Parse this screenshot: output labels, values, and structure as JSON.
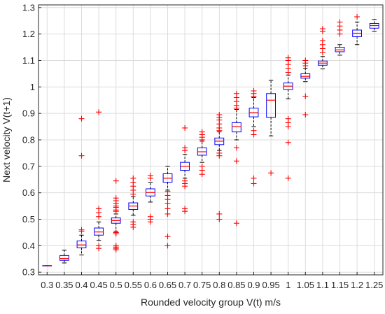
{
  "chart_data": {
    "type": "box",
    "title": "",
    "xlabel": "Rounded velocity group V(t) m/s",
    "ylabel": "Next velocity V(t+1)",
    "ylim": [
      0.29,
      1.31
    ],
    "yticks": [
      0.3,
      0.4,
      0.5,
      0.6,
      0.7,
      0.8,
      0.9,
      1,
      1.1,
      1.2,
      1.3
    ],
    "ytick_labels": [
      "0.3",
      "0.4",
      "0.5",
      "0.6",
      "0.7",
      "0.8",
      "0.9",
      "1",
      "1.1",
      "1.2",
      "1.3"
    ],
    "categories": [
      "0.3",
      "0.35",
      "0.4",
      "0.45",
      "0.5",
      "0.55",
      "0.6",
      "0.65",
      "0.7",
      "0.75",
      "0.8",
      "0.85",
      "0.9",
      "0.95",
      "1",
      "1.05",
      "1.1",
      "1.15",
      "1.2",
      "1.25"
    ],
    "grid": true,
    "colors": {
      "box": "#0000ff",
      "median": "#ff0000",
      "whisker": "#000000",
      "outlier": "#ff0000",
      "grid": "#dcdcdc"
    },
    "boxes": [
      {
        "category": "0.3",
        "lower_whisker": 0.325,
        "q1": 0.325,
        "median": 0.325,
        "q3": 0.325,
        "upper_whisker": 0.325,
        "outliers": []
      },
      {
        "category": "0.35",
        "lower_whisker": 0.335,
        "q1": 0.345,
        "median": 0.352,
        "q3": 0.363,
        "upper_whisker": 0.383,
        "outliers": []
      },
      {
        "category": "0.4",
        "lower_whisker": 0.365,
        "q1": 0.392,
        "median": 0.403,
        "q3": 0.418,
        "upper_whisker": 0.44,
        "outliers": [
          0.455,
          0.46,
          0.74,
          0.88
        ]
      },
      {
        "category": "0.45",
        "lower_whisker": 0.42,
        "q1": 0.44,
        "median": 0.452,
        "q3": 0.467,
        "upper_whisker": 0.49,
        "outliers": [
          0.39,
          0.4,
          0.51,
          0.525,
          0.54,
          0.905
        ]
      },
      {
        "category": "0.5",
        "lower_whisker": 0.455,
        "q1": 0.485,
        "median": 0.495,
        "q3": 0.505,
        "upper_whisker": 0.52,
        "outliers": [
          0.385,
          0.39,
          0.395,
          0.4,
          0.445,
          0.45,
          0.53,
          0.535,
          0.545,
          0.55,
          0.56,
          0.57,
          0.58,
          0.645
        ]
      },
      {
        "category": "0.55",
        "lower_whisker": 0.515,
        "q1": 0.537,
        "median": 0.55,
        "q3": 0.562,
        "upper_whisker": 0.585,
        "outliers": [
          0.47,
          0.48,
          0.49,
          0.595,
          0.61,
          0.625,
          0.64,
          0.655
        ]
      },
      {
        "category": "0.6",
        "lower_whisker": 0.565,
        "q1": 0.588,
        "median": 0.601,
        "q3": 0.615,
        "upper_whisker": 0.64,
        "outliers": [
          0.49,
          0.5,
          0.51,
          0.655,
          0.665
        ]
      },
      {
        "category": "0.65",
        "lower_whisker": 0.61,
        "q1": 0.64,
        "median": 0.655,
        "q3": 0.672,
        "upper_whisker": 0.7,
        "outliers": [
          0.4,
          0.435,
          0.52,
          0.54,
          0.56,
          0.575,
          0.59,
          0.605
        ]
      },
      {
        "category": "0.7",
        "lower_whisker": 0.655,
        "q1": 0.685,
        "median": 0.7,
        "q3": 0.715,
        "upper_whisker": 0.745,
        "outliers": [
          0.53,
          0.54,
          0.625,
          0.635,
          0.645,
          0.76,
          0.77,
          0.845
        ]
      },
      {
        "category": "0.75",
        "lower_whisker": 0.715,
        "q1": 0.742,
        "median": 0.755,
        "q3": 0.77,
        "upper_whisker": 0.795,
        "outliers": [
          0.67,
          0.685,
          0.7,
          0.8,
          0.81,
          0.82,
          0.83
        ]
      },
      {
        "category": "0.8",
        "lower_whisker": 0.76,
        "q1": 0.782,
        "median": 0.795,
        "q3": 0.807,
        "upper_whisker": 0.83,
        "outliers": [
          0.5,
          0.52,
          0.74,
          0.75,
          0.835,
          0.845,
          0.86,
          0.875,
          0.885,
          0.895
        ]
      },
      {
        "category": "0.85",
        "lower_whisker": 0.8,
        "q1": 0.83,
        "median": 0.85,
        "q3": 0.865,
        "upper_whisker": 0.915,
        "outliers": [
          0.485,
          0.72,
          0.77,
          0.92,
          0.93,
          0.945,
          0.96,
          0.975
        ]
      },
      {
        "category": "0.9",
        "lower_whisker": 0.85,
        "q1": 0.887,
        "median": 0.903,
        "q3": 0.92,
        "upper_whisker": 0.96,
        "outliers": [
          0.635,
          0.655,
          0.82,
          0.835,
          0.965,
          0.975,
          0.985
        ]
      },
      {
        "category": "0.95",
        "lower_whisker": 0.815,
        "q1": 0.885,
        "median": 0.95,
        "q3": 0.975,
        "upper_whisker": 1.025,
        "outliers": [
          0.675
        ]
      },
      {
        "category": "1",
        "lower_whisker": 0.955,
        "q1": 0.99,
        "median": 1.003,
        "q3": 1.015,
        "upper_whisker": 1.045,
        "outliers": [
          0.655,
          0.79,
          0.85,
          0.865,
          0.88,
          1.055,
          1.07,
          1.085,
          1.1,
          1.11
        ]
      },
      {
        "category": "1.05",
        "lower_whisker": 1.02,
        "q1": 1.033,
        "median": 1.04,
        "q3": 1.05,
        "upper_whisker": 1.07,
        "outliers": [
          0.895,
          0.965,
          1.08,
          1.09,
          1.1
        ]
      },
      {
        "category": "1.1",
        "lower_whisker": 1.068,
        "q1": 1.082,
        "median": 1.09,
        "q3": 1.098,
        "upper_whisker": 1.115,
        "outliers": [
          1.13,
          1.145,
          1.16,
          1.175,
          1.21,
          1.22
        ]
      },
      {
        "category": "1.15",
        "lower_whisker": 1.12,
        "q1": 1.133,
        "median": 1.14,
        "q3": 1.15,
        "upper_whisker": 1.16,
        "outliers": [
          1.2,
          1.215,
          1.23,
          1.245
        ]
      },
      {
        "category": "1.2",
        "lower_whisker": 1.16,
        "q1": 1.19,
        "median": 1.203,
        "q3": 1.215,
        "upper_whisker": 1.245,
        "outliers": [
          1.265
        ]
      },
      {
        "category": "1.25",
        "lower_whisker": 1.21,
        "q1": 1.222,
        "median": 1.232,
        "q3": 1.24,
        "upper_whisker": 1.255,
        "outliers": []
      }
    ]
  }
}
